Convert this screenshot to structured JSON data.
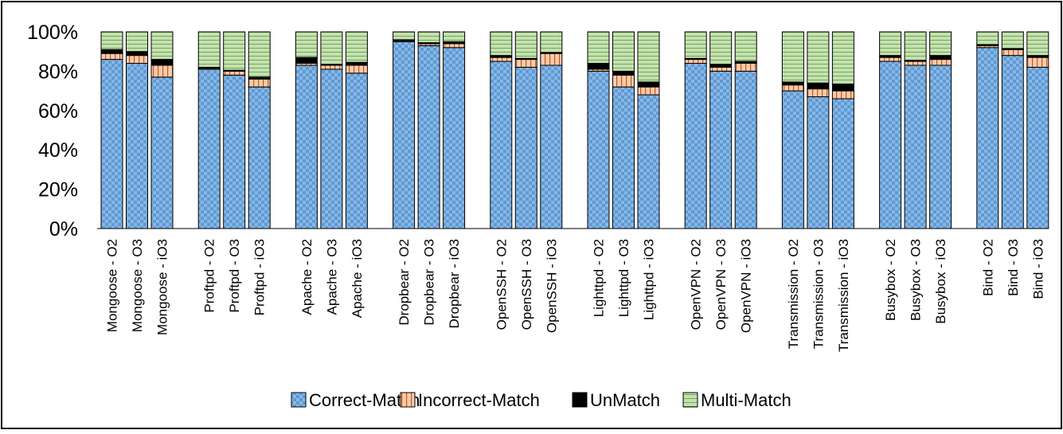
{
  "chart_data": {
    "type": "bar",
    "stacked": true,
    "ylim": [
      0,
      100
    ],
    "yticks": [
      "0%",
      "20%",
      "40%",
      "60%",
      "80%",
      "100%"
    ],
    "grid": false,
    "legend_position": "bottom",
    "categories": [
      "Mongoose - O2",
      "Mongoose - O3",
      "Mongoose - iO3",
      "Proftpd - O2",
      "Proftpd - O3",
      "Proftpd - iO3",
      "Apache - O2",
      "Apache - O3",
      "Apache - iO3",
      "Dropbear - O2",
      "Dropbear - O3",
      "Dropbear - iO3",
      "OpenSSH - O2",
      "OpenSSH - O3",
      "OpenSSH - iO3",
      "Lighttpd - O2",
      "Lighttpd - O3",
      "Lighttpd - iO3",
      "OpenVPN - O2",
      "OpenVPN - O3",
      "OpenVPN - iO3",
      "Transmission - O2",
      "Transmission - O3",
      "Transmission - iO3",
      "Busybox - O2",
      "Busybox - O3",
      "Busybox - iO3",
      "Bind - O2",
      "Bind - O3",
      "Bind - iO3"
    ],
    "series": [
      {
        "name": "Correct-Match",
        "color": "#5b9bd5",
        "values": [
          86,
          84,
          77,
          81,
          78,
          72,
          83,
          81,
          79,
          95,
          93,
          92,
          85,
          82,
          83,
          80,
          72,
          68,
          84,
          80,
          80,
          70,
          67,
          66,
          85,
          83,
          83,
          92,
          88,
          82
        ]
      },
      {
        "name": "Incorrect-Match",
        "color": "#f8cbad",
        "values": [
          3,
          4,
          6,
          0.5,
          2,
          4,
          1,
          2,
          4,
          0.5,
          1,
          2,
          2,
          4,
          6,
          1,
          6,
          4,
          2,
          2,
          4,
          3,
          4,
          4,
          2,
          2,
          3,
          1,
          3,
          5
        ]
      },
      {
        "name": "UnMatch",
        "color": "#000000",
        "values": [
          2,
          2,
          3,
          0.5,
          0.5,
          1,
          3,
          0.5,
          1.5,
          0.5,
          0.5,
          1,
          1,
          0.5,
          0.5,
          3,
          2,
          2.5,
          0.5,
          1.5,
          1,
          1.5,
          3,
          3.5,
          1,
          0.5,
          2,
          0.5,
          0.5,
          1
        ]
      },
      {
        "name": "Multi-Match",
        "color": "#c5e0b4",
        "values": [
          9,
          10,
          14,
          18,
          19.5,
          23,
          13,
          16.5,
          15.5,
          4,
          5.5,
          5,
          12,
          13.5,
          10.5,
          16,
          20,
          25.5,
          13.5,
          16.5,
          15,
          25.5,
          26,
          26.5,
          12,
          14.5,
          12,
          6.5,
          8.5,
          12
        ]
      }
    ]
  }
}
